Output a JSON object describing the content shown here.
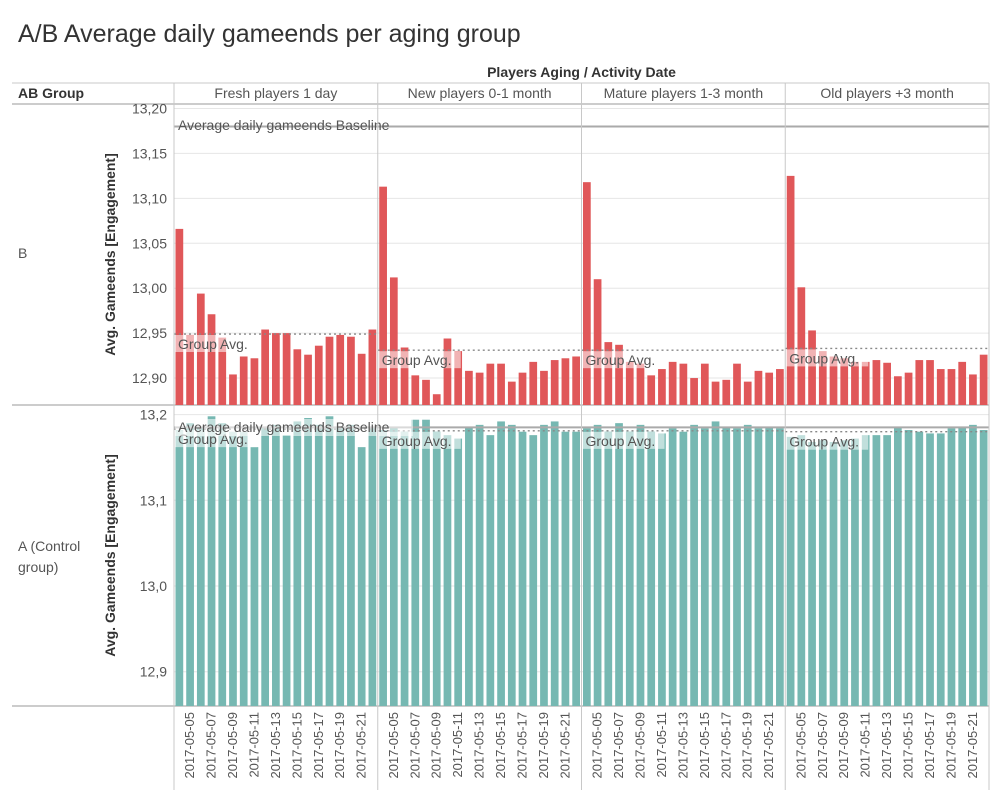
{
  "title": "A/B Average daily gameends per aging group",
  "colors": {
    "group_b": "#e05759",
    "group_a": "#76b8b2",
    "grid": "#e6e6e6",
    "divider": "#c8c8c8",
    "baseline": "#aaaaaa",
    "text": "#333333",
    "muted": "#555555"
  },
  "chart_data": {
    "type": "bar",
    "header_title": "Players Aging / Activity Date",
    "row_header": "AB Group",
    "panels": [
      "Fresh players 1 day",
      "New players 0-1 month",
      "Mature players 1-3 month",
      "Old players +3 month"
    ],
    "dates": [
      "2017-05-04",
      "2017-05-05",
      "2017-05-06",
      "2017-05-07",
      "2017-05-08",
      "2017-05-09",
      "2017-05-10",
      "2017-05-11",
      "2017-05-12",
      "2017-05-13",
      "2017-05-14",
      "2017-05-15",
      "2017-05-16",
      "2017-05-17",
      "2017-05-18",
      "2017-05-19",
      "2017-05-20",
      "2017-05-21",
      "2017-05-22"
    ],
    "tick_labels": [
      "2017-05-05",
      "2017-05-07",
      "2017-05-09",
      "2017-05-11",
      "2017-05-13",
      "2017-05-15",
      "2017-05-17",
      "2017-05-19",
      "2017-05-21"
    ],
    "baseline_label": "Average daily gameends Baseline",
    "group_avg_label": "Group Avg.",
    "rows": [
      {
        "name": "B",
        "ylabel": "Avg. Gameends [Engagement]",
        "ylim": [
          12.87,
          13.205
        ],
        "ticks": [
          12.9,
          12.95,
          13.0,
          13.05,
          13.1,
          13.15,
          13.2
        ],
        "tick_labels": [
          "12,90",
          "12,95",
          "13,00",
          "13,05",
          "13,10",
          "13,15",
          "13,20"
        ],
        "baseline": 13.18,
        "group_avg": [
          12.949,
          12.931,
          12.931,
          12.933
        ],
        "series": [
          {
            "panel": "Fresh players 1 day",
            "values": [
              13.066,
              12.948,
              12.994,
              12.971,
              12.945,
              12.904,
              12.924,
              12.922,
              12.954,
              12.95,
              12.95,
              12.932,
              12.926,
              12.936,
              12.946,
              12.948,
              12.946,
              12.927,
              12.954
            ]
          },
          {
            "panel": "New players 0-1 month",
            "values": [
              13.113,
              13.012,
              12.934,
              12.903,
              12.898,
              12.882,
              12.944,
              12.93,
              12.908,
              12.906,
              12.916,
              12.916,
              12.896,
              12.906,
              12.918,
              12.908,
              12.92,
              12.922,
              12.924
            ]
          },
          {
            "panel": "Mature players 1-3 month",
            "values": [
              13.118,
              13.01,
              12.94,
              12.937,
              12.918,
              12.916,
              12.903,
              12.91,
              12.918,
              12.916,
              12.9,
              12.916,
              12.896,
              12.898,
              12.916,
              12.896,
              12.908,
              12.906,
              12.91
            ]
          },
          {
            "panel": "Old players +3 month",
            "values": [
              13.125,
              13.001,
              12.953,
              12.93,
              12.924,
              12.922,
              12.918,
              12.918,
              12.92,
              12.917,
              12.902,
              12.906,
              12.92,
              12.92,
              12.91,
              12.91,
              12.918,
              12.904,
              12.926
            ]
          }
        ]
      },
      {
        "name": "A (Control group)",
        "ylabel": "Avg. Gameends [Engagement]",
        "ylim": [
          12.86,
          13.21
        ],
        "ticks": [
          12.9,
          13.0,
          13.1,
          13.2
        ],
        "tick_labels": [
          "12,9",
          "13,0",
          "13,1",
          "13,2"
        ],
        "baseline": 13.185,
        "group_avg": [
          13.183,
          13.181,
          13.181,
          13.18
        ],
        "series": [
          {
            "panel": "Fresh players 1 day",
            "values": [
              13.182,
              13.19,
              13.184,
              13.198,
              13.19,
              13.18,
              13.18,
              13.162,
              13.186,
              13.188,
              13.176,
              13.192,
              13.196,
              13.188,
              13.198,
              13.186,
              13.188,
              13.162,
              13.186
            ]
          },
          {
            "panel": "New players 0-1 month",
            "values": [
              13.182,
              13.186,
              13.18,
              13.194,
              13.194,
              13.18,
              13.176,
              13.172,
              13.186,
              13.188,
              13.176,
              13.192,
              13.188,
              13.18,
              13.176,
              13.188,
              13.192,
              13.18,
              13.18
            ]
          },
          {
            "panel": "Mature players 1-3 month",
            "values": [
              13.184,
              13.188,
              13.18,
              13.19,
              13.18,
              13.188,
              13.18,
              13.178,
              13.184,
              13.18,
              13.188,
              13.184,
              13.192,
              13.186,
              13.184,
              13.188,
              13.184,
              13.186,
              13.184
            ]
          },
          {
            "panel": "Old players +3 month",
            "values": [
              13.174,
              13.176,
              13.168,
              13.17,
              13.168,
              13.17,
              13.172,
              13.176,
              13.176,
              13.176,
              13.186,
              13.182,
              13.18,
              13.178,
              13.178,
              13.184,
              13.186,
              13.188,
              13.182
            ]
          }
        ]
      }
    ]
  }
}
